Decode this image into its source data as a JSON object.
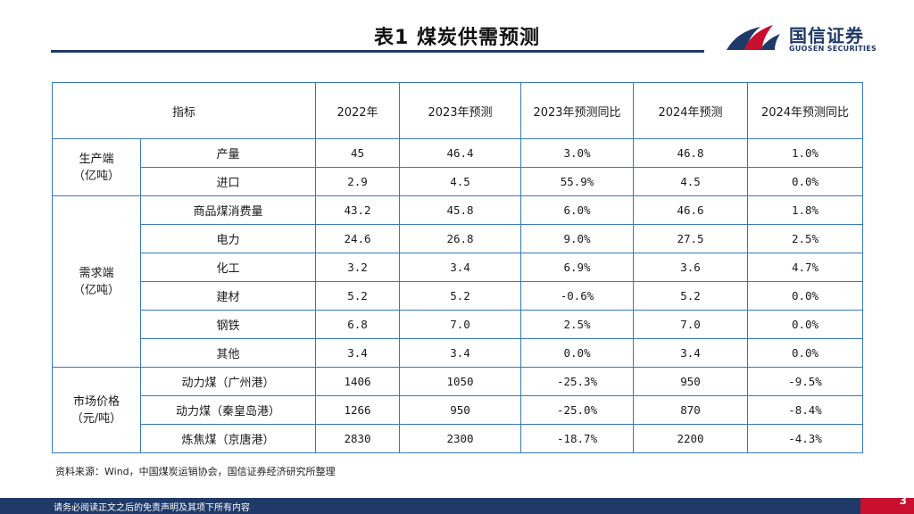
{
  "title": "表1   煤炭供需预测",
  "logo": {
    "cn": "国信证券",
    "en": "GUOSEN SECURITIES"
  },
  "colors": {
    "brand_blue": "#1f3a68",
    "brand_red": "#c8102e",
    "table_border": "#3a78b8"
  },
  "table": {
    "headers": [
      "指标",
      "2022年",
      "2023年预测",
      "2023年预测同比",
      "2024年预测",
      "2024年预测同比"
    ],
    "groups": {
      "production": "生产端\n（亿吨）",
      "demand": "需求端\n（亿吨）",
      "price": "市场价格\n（元/吨）"
    },
    "rows": [
      {
        "item": "产量",
        "y2022": "45",
        "y2023": "46.4",
        "y2023yoy": "3.0%",
        "y2024": "46.8",
        "y2024yoy": "1.0%"
      },
      {
        "item": "进口",
        "y2022": "2.9",
        "y2023": "4.5",
        "y2023yoy": "55.9%",
        "y2024": "4.5",
        "y2024yoy": "0.0%"
      },
      {
        "item": "商品煤消费量",
        "y2022": "43.2",
        "y2023": "45.8",
        "y2023yoy": "6.0%",
        "y2024": "46.6",
        "y2024yoy": "1.8%"
      },
      {
        "item": "电力",
        "y2022": "24.6",
        "y2023": "26.8",
        "y2023yoy": "9.0%",
        "y2024": "27.5",
        "y2024yoy": "2.5%"
      },
      {
        "item": "化工",
        "y2022": "3.2",
        "y2023": "3.4",
        "y2023yoy": "6.9%",
        "y2024": "3.6",
        "y2024yoy": "4.7%"
      },
      {
        "item": "建材",
        "y2022": "5.2",
        "y2023": "5.2",
        "y2023yoy": "-0.6%",
        "y2024": "5.2",
        "y2024yoy": "0.0%"
      },
      {
        "item": "钢铁",
        "y2022": "6.8",
        "y2023": "7.0",
        "y2023yoy": "2.5%",
        "y2024": "7.0",
        "y2024yoy": "0.0%"
      },
      {
        "item": "其他",
        "y2022": "3.4",
        "y2023": "3.4",
        "y2023yoy": "0.0%",
        "y2024": "3.4",
        "y2024yoy": "0.0%"
      },
      {
        "item": "动力煤（广州港）",
        "y2022": "1406",
        "y2023": "1050",
        "y2023yoy": "-25.3%",
        "y2024": "950",
        "y2024yoy": "-9.5%"
      },
      {
        "item": "动力煤（秦皇岛港）",
        "y2022": "1266",
        "y2023": "950",
        "y2023yoy": "-25.0%",
        "y2024": "870",
        "y2024yoy": "-8.4%"
      },
      {
        "item": "炼焦煤（京唐港）",
        "y2022": "2830",
        "y2023": "2300",
        "y2023yoy": "-18.7%",
        "y2024": "2200",
        "y2024yoy": "-4.3%"
      }
    ]
  },
  "source": "资料来源：Wind，中国煤炭运销协会，国信证券经济研究所整理",
  "footer": "请务必阅读正文之后的免责声明及其项下所有内容",
  "page_number": "3"
}
